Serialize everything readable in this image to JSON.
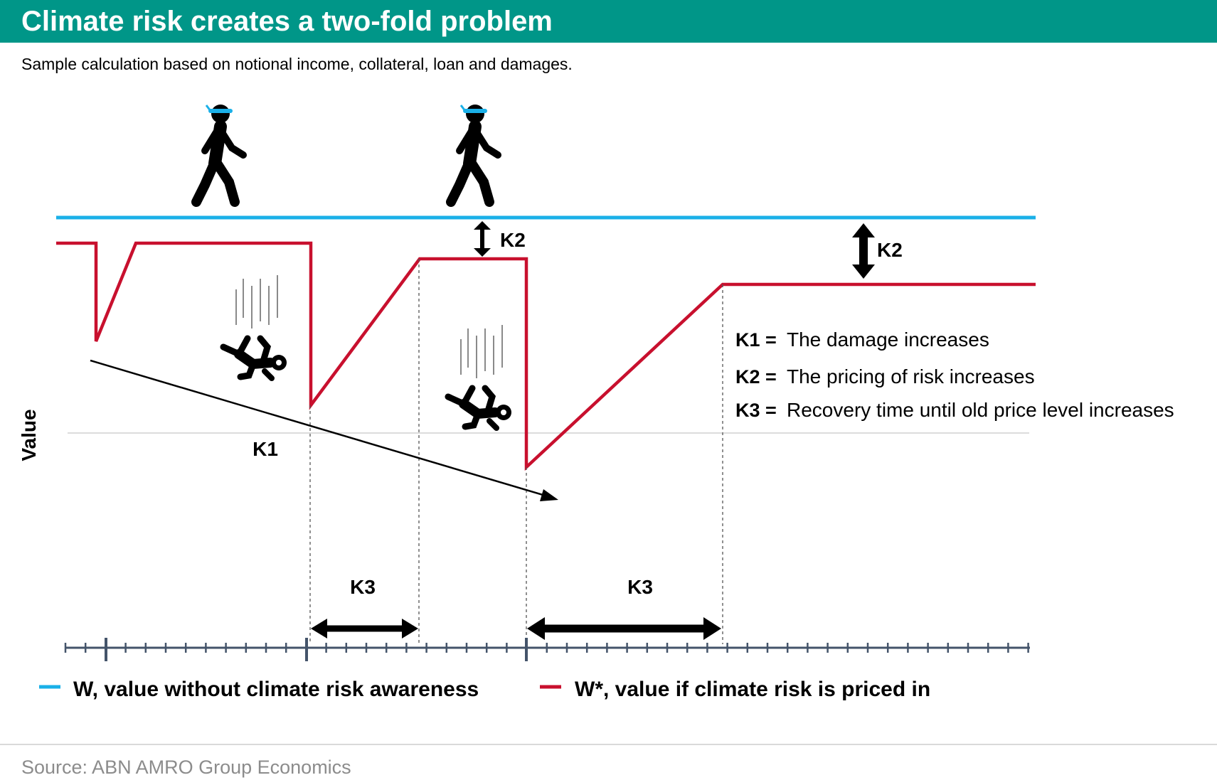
{
  "header": {
    "title": "Climate risk creates a two-fold problem",
    "subtitle": "Sample calculation based on notional income, collateral, loan and damages.",
    "bar_color": "#009688"
  },
  "diagram": {
    "y_axis_label": "Value",
    "k1_label": "K1",
    "k2_label": "K2",
    "k3_label": "K3",
    "definitions": [
      {
        "key": "K1 =",
        "text": "The damage increases"
      },
      {
        "key": "K2 =",
        "text": "The pricing of risk increases"
      },
      {
        "key": "K3 =",
        "text": "Recovery time until old price level increases"
      }
    ],
    "icons": [
      "walking-person-icon",
      "walking-person-icon",
      "falling-person-icon",
      "falling-person-icon"
    ],
    "colors": {
      "w_line": "#1ab0e8",
      "w_star_line": "#c8102e",
      "axis": "#44546a"
    }
  },
  "legend": {
    "items": [
      {
        "label": "W, value without climate risk awareness",
        "color": "#1ab0e8"
      },
      {
        "label": "W*, value if climate risk is priced in",
        "color": "#c8102e"
      }
    ]
  },
  "footer": {
    "source": "Source: ABN AMRO Group Economics"
  }
}
